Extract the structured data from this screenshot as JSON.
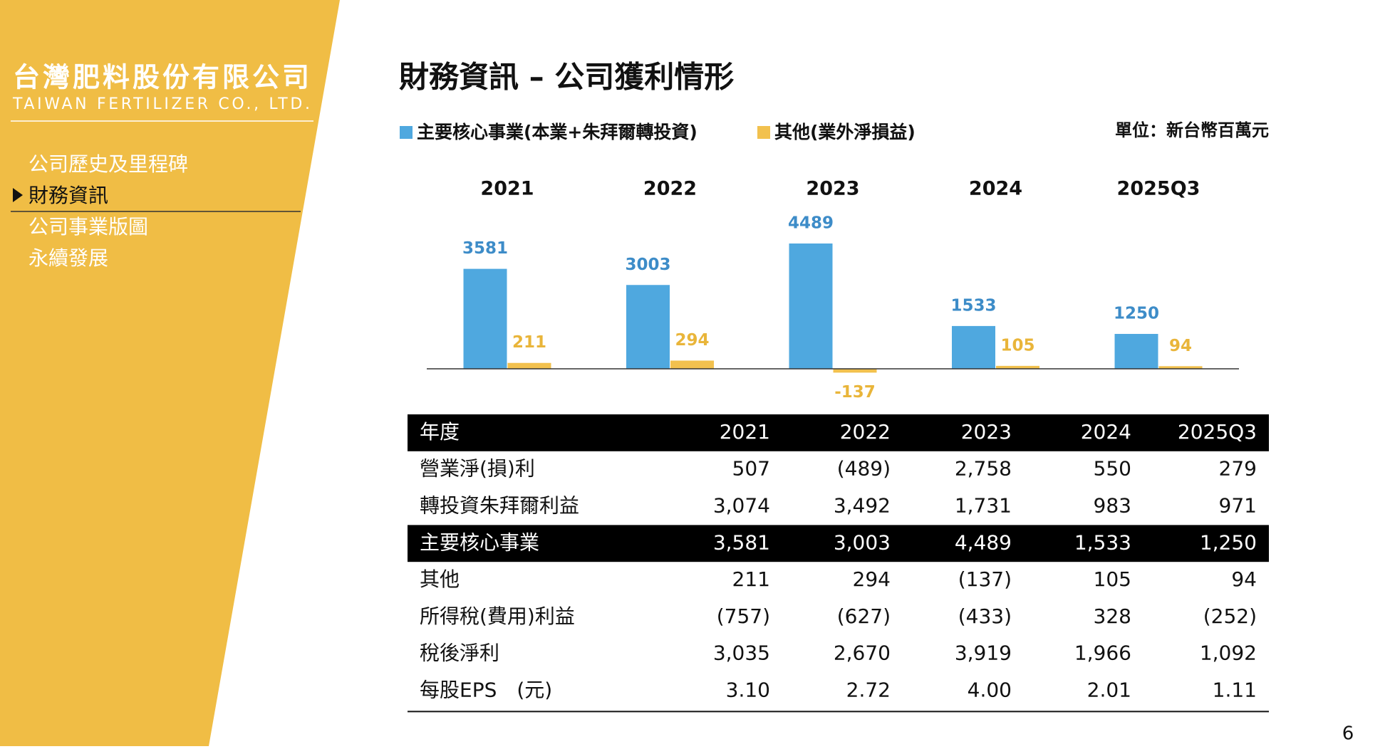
{
  "sidebar": {
    "company_name": "台灣肥料股份有限公司",
    "company_name_en": "TAIWAN FERTILIZER CO., LTD.",
    "menu": [
      "公司歷史及里程碑",
      "財務資訊",
      "公司事業版圖",
      "永續發展"
    ]
  },
  "header": {
    "title": "財務資訊 – 公司獲利情形"
  },
  "chart_data": {
    "type": "bar",
    "unit_note": "單位：新台幣百萬元",
    "categories": [
      "2021",
      "2022",
      "2023",
      "2024",
      "2025Q3"
    ],
    "series": [
      {
        "name": "主要核心事業(本業+朱拜爾轉投資)",
        "color": "#4fa8df",
        "values": [
          3581,
          3003,
          4489,
          1533,
          1250
        ]
      },
      {
        "name": "其他(業外淨損益)",
        "color": "#f2c14e",
        "values": [
          211,
          294,
          -137,
          105,
          94
        ]
      }
    ]
  },
  "table": {
    "header": [
      "年度",
      "2021",
      "2022",
      "2023",
      "2024",
      "2025Q3"
    ],
    "rows": [
      [
        "營業淨(損)利",
        "507",
        "(489)",
        "2,758",
        "550",
        "279"
      ],
      [
        "轉投資朱拜爾利益",
        "3,074",
        "3,492",
        "1,731",
        "983",
        "971"
      ],
      [
        "主要核心事業",
        "3,581",
        "3,003",
        "4,489",
        "1,533",
        "1,250"
      ],
      [
        "其他",
        "211",
        "294",
        "(137)",
        "105",
        "94"
      ],
      [
        "所得稅(費用)利益",
        "(757)",
        "(627)",
        "(433)",
        "328",
        "(252)"
      ],
      [
        "稅後淨利",
        "3,035",
        "2,670",
        "3,919",
        "1,966",
        "1,092"
      ],
      [
        "每股EPS　(元)",
        "3.10",
        "2.72",
        "4.00",
        "2.01",
        "1.11"
      ]
    ]
  },
  "page_number": "6"
}
